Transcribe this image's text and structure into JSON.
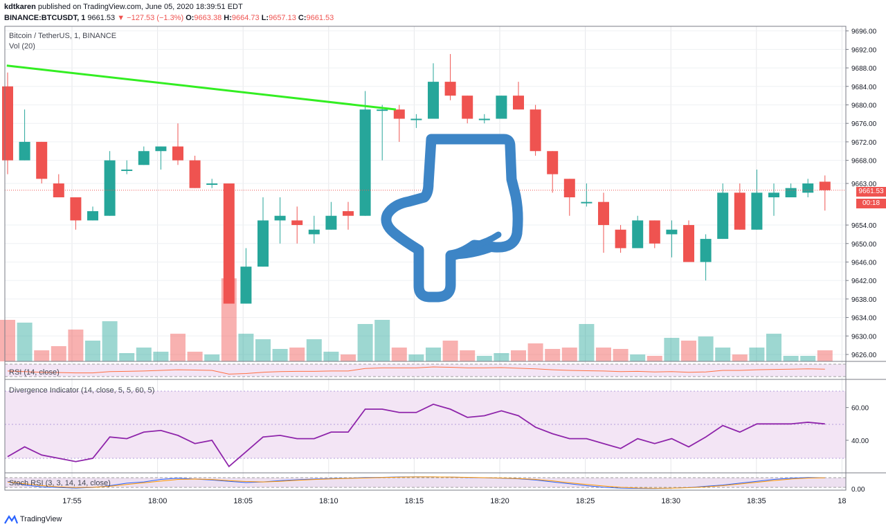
{
  "header": {
    "author": "kdtkaren",
    "published": "published on TradingView.com, June 05, 2020 18:39:51 EDT",
    "symbol": "BINANCE:BTCUSDT, 1",
    "price": "9661.53",
    "change": "▼ −127.53 (−1.3%)",
    "o_label": "O:",
    "o": "9663.38",
    "h_label": "H:",
    "h": "9664.73",
    "l_label": "L:",
    "l": "9657.13",
    "c_label": "C:",
    "c": "9661.53"
  },
  "pane_labels": {
    "main": "Bitcoin / TetherUS, 1, BINANCE",
    "vol": "Vol (20)",
    "rsi": "RSI (14, close)",
    "div": "Divergence Indicator (14, close, 5, 5, 60, 5)",
    "stoch": "Stoch RSI (3, 3, 14, 14, close)"
  },
  "price_badge": "9661.53",
  "countdown_badge": "00:18",
  "footer_brand": "TradingView",
  "colors": {
    "up": "#26a69a",
    "down": "#ef5350",
    "trend": "#33ee22",
    "hand": "#3d85c6",
    "purple": "#8e24aa"
  },
  "annotation_icon": "pointing-hand-down-icon",
  "chart_data": [
    {
      "type": "candlestick",
      "pane": "main",
      "time_ticks": [
        "17:55",
        "18:00",
        "18:05",
        "18:10",
        "18:15",
        "18:20",
        "18:25",
        "18:30",
        "18:35",
        "18"
      ],
      "price_ticks": [
        "9696.00",
        "9692.00",
        "9688.00",
        "9684.00",
        "9680.00",
        "9676.00",
        "9672.00",
        "9668.00",
        "9663.00",
        "9654.00",
        "9650.00",
        "9646.00",
        "9642.00",
        "9638.00",
        "9634.00",
        "9630.00",
        "9626.00"
      ],
      "ylim": [
        9624.5,
        9697
      ],
      "last_price": 9661.53,
      "ohlc": [
        [
          9684,
          9687,
          9665,
          9668
        ],
        [
          9668,
          9679,
          9668,
          9672
        ],
        [
          9672,
          9672,
          9663,
          9664
        ],
        [
          9663,
          9665,
          9660,
          9660
        ],
        [
          9660,
          9660,
          9653,
          9655
        ],
        [
          9655,
          9658,
          9655,
          9657
        ],
        [
          9656,
          9670,
          9656,
          9668
        ],
        [
          9666,
          9668,
          9665,
          9666
        ],
        [
          9667,
          9671,
          9667,
          9670
        ],
        [
          9670,
          9671,
          9666,
          9671
        ],
        [
          9671,
          9676,
          9667,
          9668
        ],
        [
          9668,
          9669,
          9662,
          9662
        ],
        [
          9663,
          9664,
          9662,
          9663
        ],
        [
          9663,
          9663,
          9637,
          9637
        ],
        [
          9637,
          9649,
          9637,
          9645
        ],
        [
          9645,
          9660,
          9645,
          9655
        ],
        [
          9655,
          9660,
          9650,
          9656
        ],
        [
          9655,
          9658,
          9650,
          9654
        ],
        [
          9652,
          9656,
          9650,
          9653
        ],
        [
          9653,
          9659,
          9653,
          9656
        ],
        [
          9657,
          9659,
          9653,
          9656
        ],
        [
          9656,
          9683,
          9656,
          9679
        ],
        [
          9679,
          9680,
          9668,
          9679
        ],
        [
          9679,
          9680,
          9672,
          9677
        ],
        [
          9677,
          9678,
          9675,
          9677
        ],
        [
          9677,
          9689,
          9677,
          9685
        ],
        [
          9685,
          9691,
          9681,
          9682
        ],
        [
          9682,
          9682,
          9676,
          9677
        ],
        [
          9677,
          9678,
          9676,
          9677
        ],
        [
          9677,
          9682,
          9677,
          9682
        ],
        [
          9682,
          9685,
          9679,
          9679
        ],
        [
          9679,
          9680,
          9669,
          9670
        ],
        [
          9670,
          9670,
          9661,
          9665
        ],
        [
          9664,
          9664,
          9656,
          9660
        ],
        [
          9659,
          9663,
          9658,
          9659
        ],
        [
          9659,
          9661,
          9648,
          9654
        ],
        [
          9653,
          9654,
          9648,
          9649
        ],
        [
          9649,
          9656,
          9649,
          9655
        ],
        [
          9655,
          9655,
          9649,
          9650
        ],
        [
          9652,
          9655,
          9647,
          9653
        ],
        [
          9654,
          9655,
          9646,
          9646
        ],
        [
          9646,
          9652,
          9642,
          9651
        ],
        [
          9651,
          9663,
          9651,
          9661
        ],
        [
          9661,
          9663,
          9653,
          9653
        ],
        [
          9653,
          9666,
          9653,
          9661
        ],
        [
          9660,
          9663,
          9656,
          9661
        ],
        [
          9660,
          9663,
          9660,
          9662
        ],
        [
          9661,
          9664,
          9660,
          9663
        ],
        [
          9663.38,
          9664.73,
          9657.13,
          9661.53
        ]
      ],
      "trendline": {
        "from": [
          -0.05,
          9688.5
        ],
        "to": [
          22.8,
          9679
        ]
      }
    },
    {
      "type": "bar",
      "pane": "volume",
      "name": "Vol (20)",
      "values": [
        3,
        2.8,
        0.8,
        1.1,
        2.3,
        1.5,
        2.9,
        0.6,
        1,
        0.7,
        2,
        0.7,
        0.5,
        6,
        2,
        1.6,
        0.9,
        1,
        1.6,
        0.7,
        0.5,
        2.7,
        3,
        1,
        0.5,
        1,
        1.5,
        0.8,
        0.4,
        0.6,
        0.8,
        1.3,
        0.9,
        1,
        2.7,
        1,
        0.9,
        0.5,
        0.4,
        1.7,
        1.5,
        1.8,
        1,
        0.5,
        1,
        2,
        0.4,
        0.4,
        0.8
      ]
    },
    {
      "type": "line",
      "pane": "rsi",
      "name": "RSI (14, close)",
      "values": [
        48,
        46,
        44,
        43,
        42,
        42,
        46,
        47,
        48,
        50,
        52,
        51,
        50,
        38,
        40,
        44,
        46,
        47,
        47,
        48,
        48,
        56,
        58,
        58,
        58,
        61,
        60,
        58,
        58,
        59,
        57,
        55,
        52,
        50,
        49,
        48,
        46,
        47,
        45,
        46,
        44,
        45,
        50,
        50,
        52,
        53,
        54,
        55,
        54
      ]
    },
    {
      "type": "line",
      "pane": "divergence",
      "name": "Divergence Indicator (14, close, 5, 5, 60, 5)",
      "y_ticks": [
        "60.00",
        "40.00"
      ],
      "ylim": [
        29,
        70
      ],
      "values": [
        30,
        36,
        31,
        29,
        27,
        29,
        42,
        41,
        45,
        46,
        43,
        38,
        40,
        24,
        33,
        42,
        43,
        41,
        41,
        45,
        45,
        59,
        59,
        57,
        57,
        62,
        59,
        54,
        55,
        58,
        55,
        48,
        44,
        41,
        41,
        38,
        35,
        41,
        38,
        41,
        36,
        42,
        49,
        45,
        50,
        50,
        50,
        51,
        50
      ]
    },
    {
      "type": "line",
      "pane": "stoch",
      "name": "Stoch RSI (3, 3, 14, 14, close)",
      "y_ticks": [
        "0.00"
      ],
      "series": [
        {
          "name": "K",
          "values": [
            60,
            30,
            15,
            10,
            5,
            10,
            25,
            45,
            55,
            75,
            85,
            78,
            70,
            60,
            50,
            55,
            65,
            72,
            78,
            82,
            85,
            90,
            92,
            95,
            96,
            95,
            94,
            90,
            88,
            85,
            80,
            70,
            55,
            40,
            25,
            12,
            5,
            3,
            2,
            5,
            10,
            20,
            30,
            45,
            60,
            75,
            85,
            90,
            88
          ]
        },
        {
          "name": "D",
          "values": [
            55,
            40,
            25,
            15,
            10,
            12,
            20,
            35,
            48,
            62,
            75,
            78,
            74,
            65,
            58,
            55,
            60,
            68,
            74,
            79,
            83,
            87,
            90,
            93,
            95,
            95,
            94,
            92,
            89,
            86,
            82,
            75,
            63,
            48,
            35,
            22,
            12,
            6,
            4,
            5,
            8,
            15,
            25,
            38,
            52,
            66,
            78,
            86,
            88
          ]
        }
      ]
    }
  ]
}
